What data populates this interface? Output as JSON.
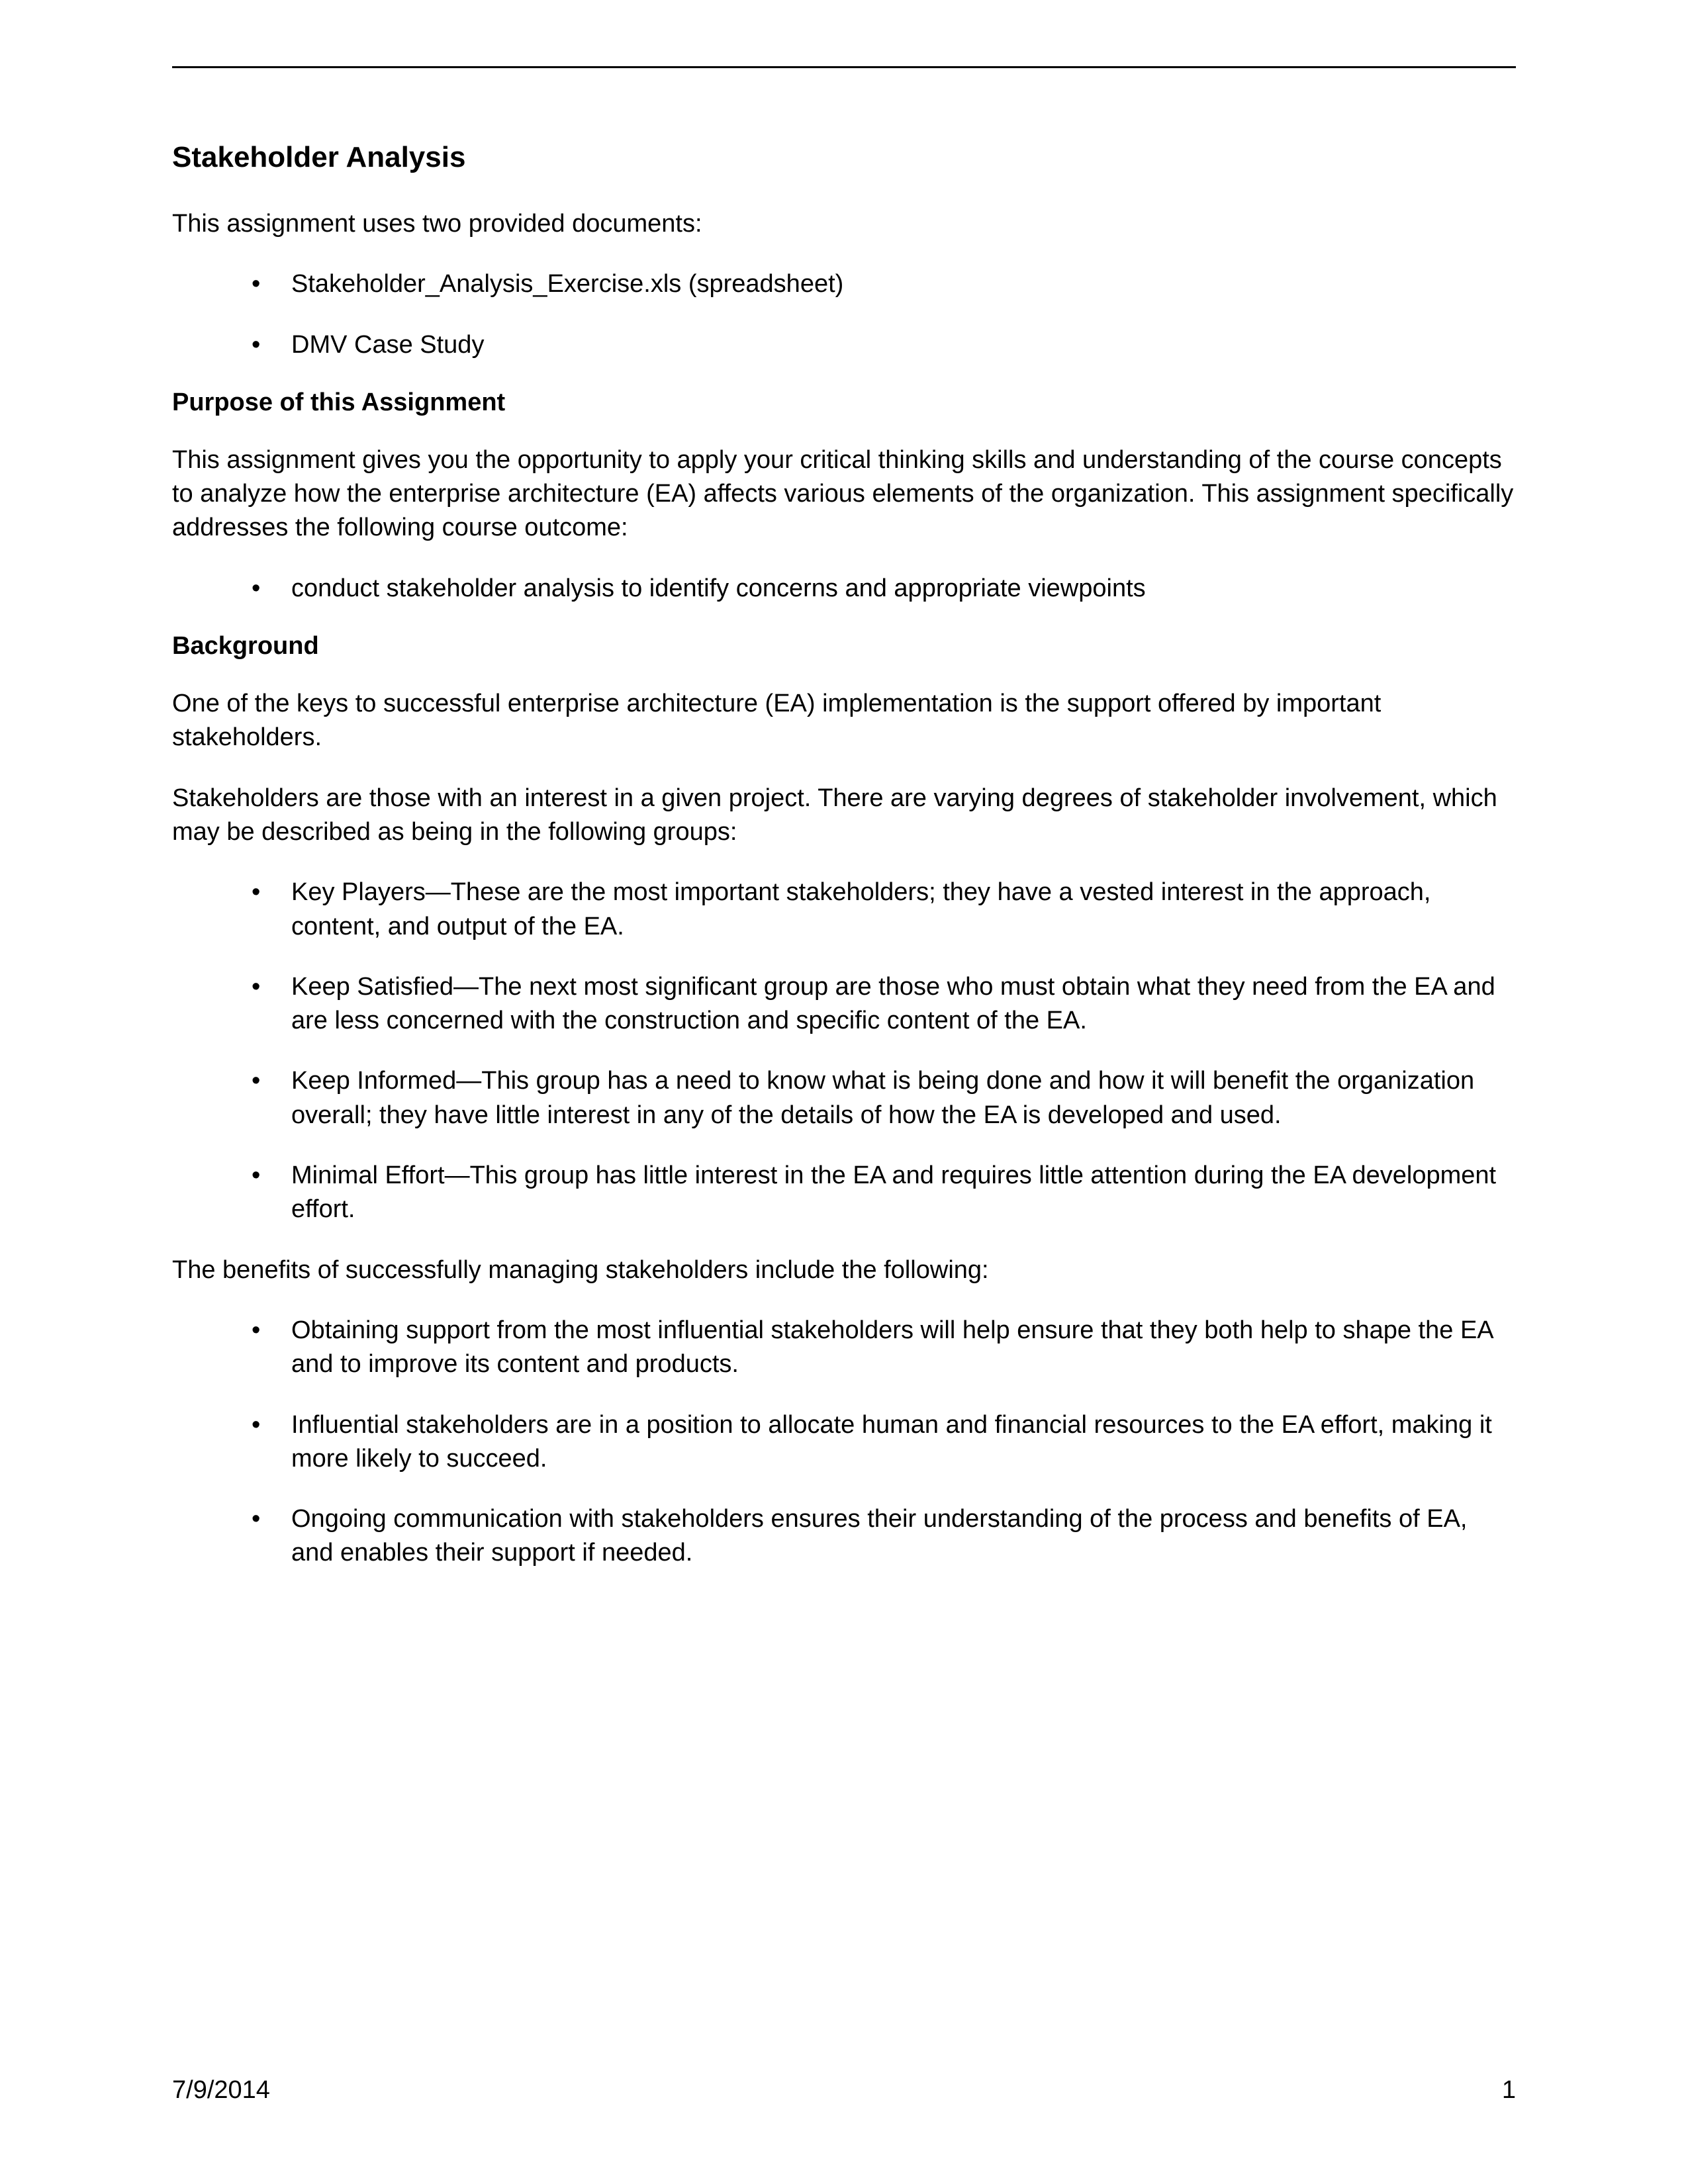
{
  "doc": {
    "title": "Stakeholder Analysis",
    "intro": "This assignment uses two provided documents:",
    "intro_list": [
      "Stakeholder_Analysis_Exercise.xls (spreadsheet)",
      "DMV Case Study"
    ],
    "purpose_head": "Purpose of this Assignment",
    "purpose_para": "This assignment gives you the opportunity to apply your critical thinking skills and understanding of the course concepts to analyze how the enterprise architecture (EA) affects various elements of the organization. This assignment specifically addresses the following course outcome:",
    "purpose_list": [
      "conduct stakeholder analysis to identify concerns and appropriate viewpoints"
    ],
    "background_head": "Background",
    "background_p1": "One of the keys to successful enterprise architecture (EA) implementation is the support offered by important stakeholders.",
    "background_p2": "Stakeholders are those with an interest in a given project. There are varying degrees of stakeholder involvement, which may be described as being in the following groups:",
    "groups_list": [
      "Key Players—These are the most important stakeholders; they have a vested interest in the approach, content, and output of the EA.",
      "Keep Satisfied—The next most significant group are those who must obtain what they need from the EA and are less concerned with the construction and specific content of the EA.",
      "Keep Informed—This group has a need to know what is being done and how it will benefit the organization overall; they have little interest in any of the details of how the EA is developed and used.",
      "Minimal Effort—This group has little interest in the EA and requires little attention during the EA development effort."
    ],
    "benefits_intro": "The benefits of successfully managing stakeholders include the following:",
    "benefits_list": [
      "Obtaining support from the most influential stakeholders will help ensure that they both help to shape the EA and to improve its content and products.",
      "Influential stakeholders are in a position to allocate human and financial resources to the EA effort, making it more likely to succeed.",
      "Ongoing communication with stakeholders ensures their understanding of the process and benefits of EA, and enables their support if needed."
    ]
  },
  "footer": {
    "date": "7/9/2014",
    "page_num": "1"
  }
}
